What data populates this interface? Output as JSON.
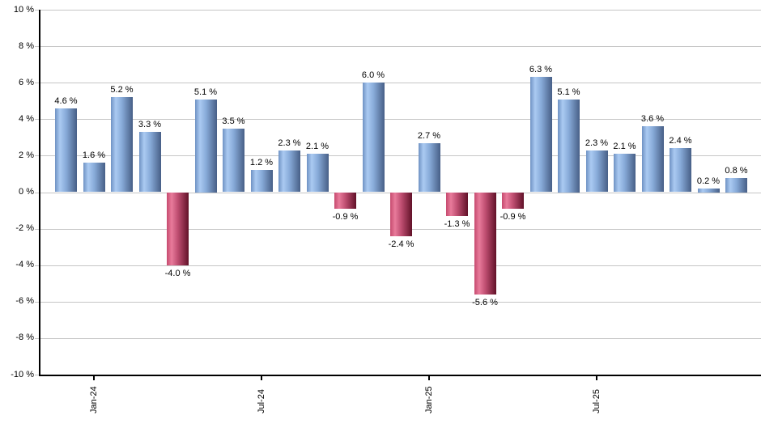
{
  "chart_data": {
    "type": "bar",
    "title": "",
    "subtitle": "",
    "xlabel": "",
    "ylabel": "",
    "unit": "%",
    "values": [
      4.6,
      1.6,
      5.2,
      3.3,
      -4.0,
      5.1,
      3.5,
      1.2,
      2.3,
      2.1,
      -0.9,
      6.0,
      -2.4,
      2.7,
      -1.3,
      -5.6,
      -0.9,
      6.3,
      5.1,
      2.3,
      2.1,
      3.6,
      2.4,
      0.2,
      0.8
    ],
    "bar_labels": [
      "4.6 %",
      "1.6 %",
      "5.2 %",
      "3.3 %",
      "-4.0 %",
      "5.1 %",
      "3.5 %",
      "1.2 %",
      "2.3 %",
      "2.1 %",
      "-0.9 %",
      "6.0 %",
      "-2.4 %",
      "2.7 %",
      "-1.3 %",
      "-5.6 %",
      "-0.9 %",
      "6.3 %",
      "5.1 %",
      "2.3 %",
      "2.1 %",
      "3.6 %",
      "2.4 %",
      "0.2 %",
      "0.8 %"
    ],
    "x_ticks": [
      {
        "index": 1,
        "label": "Jan-24"
      },
      {
        "index": 7,
        "label": "Jul-24"
      },
      {
        "index": 13,
        "label": "Jan-25"
      },
      {
        "index": 19,
        "label": "Jul-25"
      }
    ],
    "y_tick_labels": [
      "10 %",
      "8 %",
      "6 %",
      "4 %",
      "2 %",
      "0 %",
      "-2 %",
      "-4 %",
      "-6 %",
      "-8 %",
      "-10 %"
    ],
    "y_tick_values": [
      10,
      8,
      6,
      4,
      2,
      0,
      -2,
      -4,
      -6,
      -8,
      -10
    ],
    "ylim": [
      -10,
      10
    ],
    "grid": true,
    "legend_position": "none",
    "colors": {
      "positive_gradient": [
        "#6f92c3",
        "#abcaf2",
        "#88abd9",
        "#475f87"
      ],
      "negative_gradient": [
        "#c64a6e",
        "#e87b9b",
        "#c04f72",
        "#611128"
      ],
      "gradient_stops_pct": [
        0,
        22,
        50,
        100
      ],
      "gridline": "#c6c6c6",
      "axis": "#000000",
      "label_text": "#000000",
      "background": "#ffffff"
    }
  }
}
